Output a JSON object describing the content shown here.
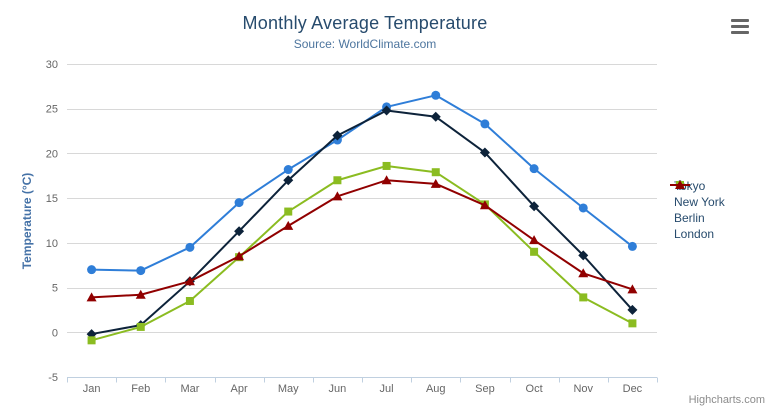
{
  "chart": {
    "title": "Monthly Average Temperature",
    "subtitle": "Source: WorldClimate.com",
    "credits_label": "Highcharts.com",
    "context_menu_icon": "hamburger-icon",
    "background_color": "#ffffff"
  },
  "axes": {
    "y_title": "Temperature (°C)",
    "y_title_color": "#4572a7",
    "axis_label_color": "#666666",
    "x_axis_line_color": "#c0d0e0",
    "grid_line_color": "#d8d8d8",
    "y_tick_labels": [
      "30",
      "25",
      "20",
      "15",
      "10",
      "5",
      "0",
      "-5"
    ]
  },
  "legend": {
    "position": "right",
    "item_color": "#274b6d",
    "items": [
      "Tokyo",
      "New York",
      "Berlin",
      "London"
    ]
  },
  "chart_data": {
    "type": "line",
    "title": "Monthly Average Temperature",
    "subtitle": "Source: WorldClimate.com",
    "xlabel": "",
    "ylabel": "Temperature (°C)",
    "ylim": [
      -5,
      30
    ],
    "ytick_interval": 5,
    "yticks": [
      30,
      25,
      20,
      15,
      10,
      5,
      0,
      -5
    ],
    "grid": true,
    "legend_position": "right",
    "categories": [
      "Jan",
      "Feb",
      "Mar",
      "Apr",
      "May",
      "Jun",
      "Jul",
      "Aug",
      "Sep",
      "Oct",
      "Nov",
      "Dec"
    ],
    "series": [
      {
        "name": "Tokyo",
        "color": "#2f7ed8",
        "marker": "circle",
        "values": [
          7.0,
          6.9,
          9.5,
          14.5,
          18.2,
          21.5,
          25.2,
          26.5,
          23.3,
          18.3,
          13.9,
          9.6
        ]
      },
      {
        "name": "New York",
        "color": "#0d233a",
        "marker": "diamond",
        "values": [
          -0.2,
          0.8,
          5.7,
          11.3,
          17.0,
          22.0,
          24.8,
          24.1,
          20.1,
          14.1,
          8.6,
          2.5
        ]
      },
      {
        "name": "Berlin",
        "color": "#8bbc21",
        "marker": "square",
        "values": [
          -0.9,
          0.6,
          3.5,
          8.4,
          13.5,
          17.0,
          18.6,
          17.9,
          14.3,
          9.0,
          3.9,
          1.0
        ]
      },
      {
        "name": "London",
        "color": "#910000",
        "marker": "triangle",
        "values": [
          3.9,
          4.2,
          5.7,
          8.5,
          11.9,
          15.2,
          17.0,
          16.6,
          14.2,
          10.3,
          6.6,
          4.8
        ]
      }
    ]
  }
}
